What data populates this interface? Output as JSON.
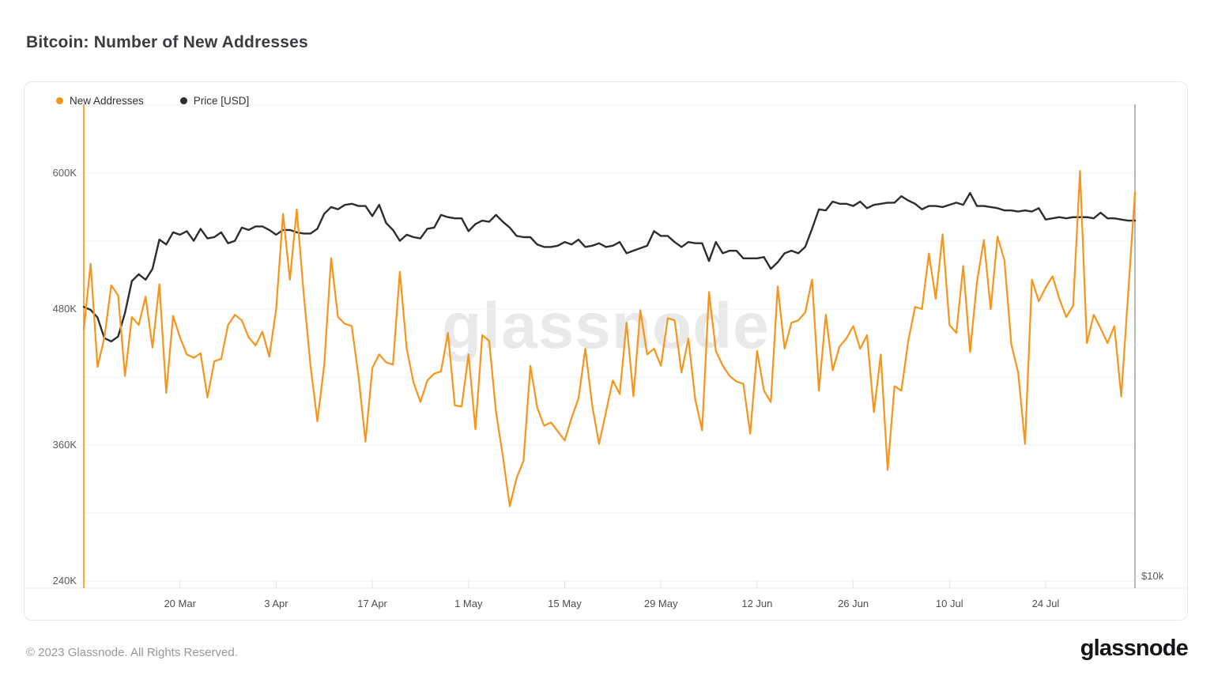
{
  "page": {
    "title": "Bitcoin: Number of New Addresses",
    "footer": "© 2023 Glassnode. All Rights Reserved.",
    "brand": "glassnode",
    "watermark": "glassnode"
  },
  "colors": {
    "new_addresses": "#f7941a",
    "price": "#2b2d31",
    "grid": "#f1f1f1",
    "axis_baseline": "#e8e8e8",
    "tick": "#e3e3e3",
    "right_axis_line": "#9b9b9b"
  },
  "chart_data": {
    "type": "line",
    "title": "Bitcoin: Number of New Addresses",
    "x_start": "2023-03-06",
    "x_end": "2023-08-06",
    "x_unit": "day",
    "grid": "horizontal",
    "legend_position": "top-left",
    "left_axis": {
      "tick_labels": [
        "600K",
        "480K",
        "360K",
        "240K"
      ],
      "tick_values_k": [
        600,
        480,
        360,
        240
      ],
      "grid_values_k": [
        240,
        300,
        360,
        420,
        480,
        540,
        600,
        660
      ],
      "range_k": [
        232,
        660
      ]
    },
    "right_axis": {
      "scale": "log",
      "tick_labels": [
        "$10k"
      ],
      "tick_values_usd": [
        10000
      ]
    },
    "x_ticks": [
      {
        "label": "20 Mar",
        "day": 14
      },
      {
        "label": "3 Apr",
        "day": 28
      },
      {
        "label": "17 Apr",
        "day": 42
      },
      {
        "label": "1 May",
        "day": 56
      },
      {
        "label": "15 May",
        "day": 70
      },
      {
        "label": "29 May",
        "day": 84
      },
      {
        "label": "12 Jun",
        "day": 98
      },
      {
        "label": "26 Jun",
        "day": 112
      },
      {
        "label": "10 Jul",
        "day": 126
      },
      {
        "label": "24 Jul",
        "day": 140
      }
    ],
    "series": [
      {
        "name": "New Addresses",
        "color": "#f7941a",
        "axis": "left",
        "unit": "addresses (thousands)",
        "values_k": [
          462,
          520,
          429,
          455,
          501,
          492,
          421,
          473,
          466,
          491,
          446,
          502,
          406,
          474,
          455,
          440,
          437,
          441,
          402,
          434,
          436,
          466,
          475,
          470,
          455,
          448,
          460,
          438,
          480,
          564,
          506,
          568,
          494,
          430,
          381,
          431,
          525,
          473,
          467,
          465,
          420,
          363,
          428,
          440,
          433,
          431,
          513,
          445,
          415,
          398,
          417,
          423,
          425,
          459,
          395,
          394,
          440,
          374,
          457,
          452,
          389,
          350,
          306,
          331,
          346,
          430,
          393,
          377,
          380,
          372,
          364,
          384,
          401,
          445,
          395,
          361,
          389,
          417,
          405,
          468,
          403,
          479,
          440,
          445,
          430,
          472,
          470,
          424,
          454,
          400,
          373,
          495,
          443,
          430,
          421,
          416,
          414,
          370,
          443,
          408,
          398,
          500,
          445,
          468,
          470,
          477,
          506,
          408,
          475,
          426,
          447,
          454,
          465,
          445,
          457,
          389,
          440,
          338,
          412,
          408,
          452,
          482,
          480,
          529,
          489,
          546,
          466,
          459,
          518,
          442,
          504,
          541,
          480,
          544,
          523,
          449,
          424,
          361,
          506,
          487,
          499,
          509,
          489,
          473,
          483,
          602,
          450,
          475,
          463,
          450,
          465,
          403,
          493,
          583
        ]
      },
      {
        "name": "Price [USD]",
        "color": "#2b2d31",
        "axis": "right",
        "unit": "USD",
        "values": [
          22400,
          22200,
          21700,
          20400,
          20200,
          20500,
          22000,
          24200,
          24700,
          24300,
          25100,
          27400,
          27000,
          28000,
          27800,
          28100,
          27300,
          28300,
          27500,
          27600,
          28000,
          27100,
          27300,
          28400,
          28200,
          28500,
          28500,
          28200,
          27800,
          28200,
          28200,
          28000,
          27900,
          27900,
          28300,
          29600,
          30200,
          30000,
          30400,
          30500,
          30300,
          30300,
          29400,
          30400,
          28800,
          28200,
          27300,
          27800,
          27600,
          27500,
          28300,
          28400,
          29500,
          29300,
          29200,
          29200,
          28100,
          28700,
          29000,
          28900,
          29500,
          28900,
          28400,
          27700,
          27600,
          27600,
          27000,
          26800,
          26800,
          26900,
          27200,
          27000,
          27400,
          26800,
          26900,
          27100,
          26800,
          26900,
          27200,
          26300,
          26500,
          26700,
          26900,
          28100,
          27700,
          27700,
          27200,
          26800,
          27200,
          27100,
          27100,
          25700,
          27200,
          26300,
          26500,
          26500,
          25900,
          25900,
          25900,
          26000,
          25100,
          25600,
          26300,
          26500,
          26300,
          26800,
          28300,
          30000,
          29900,
          30700,
          30500,
          30500,
          30300,
          30700,
          30100,
          30400,
          30500,
          30600,
          30600,
          31200,
          30800,
          30500,
          30000,
          30300,
          30300,
          30200,
          30400,
          30600,
          30400,
          31500,
          30300,
          30300,
          30200,
          30100,
          29900,
          29900,
          29800,
          29900,
          29800,
          30100,
          29100,
          29200,
          29300,
          29200,
          29300,
          29300,
          29300,
          29200,
          29700,
          29200,
          29200,
          29100,
          29000,
          29000
        ]
      }
    ]
  }
}
